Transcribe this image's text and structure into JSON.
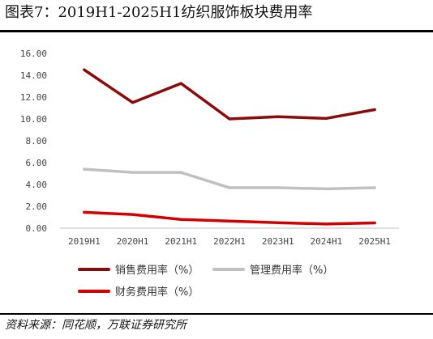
{
  "header": {
    "title": "图表7：2019H1-2025H1纺织服饰板块费用率"
  },
  "footer": {
    "source": "资料来源：同花顺，万联证券研究所"
  },
  "chart_data": {
    "type": "line",
    "title": "图表7：2019H1-2025H1纺织服饰板块费用率",
    "xlabel": "",
    "ylabel": "",
    "x": [
      "2019H1",
      "2020H1",
      "2021H1",
      "2022H1",
      "2023H1",
      "2024H1",
      "2025H1"
    ],
    "ylim": [
      0,
      16
    ],
    "yticks": [
      "0.00",
      "2.00",
      "4.00",
      "6.00",
      "8.00",
      "10.00",
      "12.00",
      "14.00",
      "16.00"
    ],
    "grid": false,
    "legend_position": "bottom",
    "series": [
      {
        "name": "销售费用率（%）",
        "color": "#8b0a0a",
        "values": [
          14.5,
          11.5,
          13.25,
          10.0,
          10.2,
          10.05,
          10.85
        ]
      },
      {
        "name": "管理费用率（%）",
        "color": "#c0c0c0",
        "values": [
          5.4,
          5.1,
          5.1,
          3.7,
          3.7,
          3.6,
          3.7
        ]
      },
      {
        "name": "财务费用率（%）",
        "color": "#d40000",
        "values": [
          1.45,
          1.25,
          0.8,
          0.65,
          0.5,
          0.38,
          0.48
        ]
      }
    ]
  }
}
